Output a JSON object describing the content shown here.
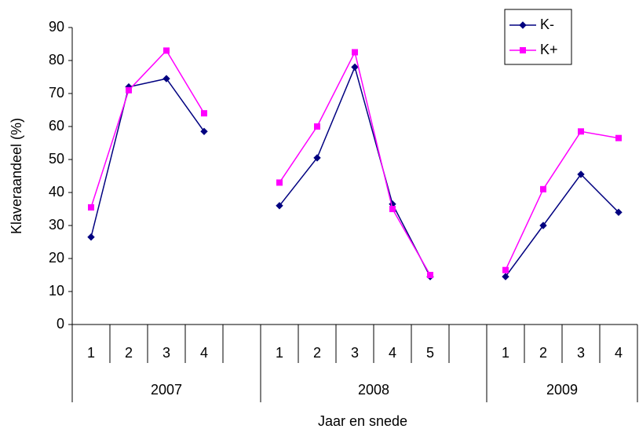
{
  "chart_data": {
    "type": "line",
    "x_label": "Jaar en snede",
    "y_label": "Klaveraandeel (%)",
    "category_groups": [
      {
        "name": "2007",
        "categories": [
          "1",
          "2",
          "3",
          "4",
          null
        ]
      },
      {
        "name": "2008",
        "categories": [
          "1",
          "2",
          "3",
          "4",
          "5",
          null
        ]
      },
      {
        "name": "2009",
        "categories": [
          "1",
          "2",
          "3",
          "4"
        ]
      }
    ],
    "series": [
      {
        "name": "K-",
        "color": "#000080",
        "marker": "diamond",
        "values": [
          26.5,
          72,
          74.5,
          58.5,
          null,
          36,
          50.5,
          78,
          36.5,
          14.5,
          null,
          14.5,
          30,
          45.5,
          34
        ]
      },
      {
        "name": "K+",
        "color": "#ff00ff",
        "marker": "square",
        "values": [
          35.5,
          71,
          83,
          64,
          null,
          43,
          60,
          82.5,
          35,
          15,
          null,
          16.5,
          41,
          58.5,
          56.5
        ]
      }
    ],
    "ylim": [
      0,
      90
    ],
    "yticks": [
      0,
      10,
      20,
      30,
      40,
      50,
      60,
      70,
      80,
      90
    ],
    "grid": false,
    "legend": "top-right"
  }
}
